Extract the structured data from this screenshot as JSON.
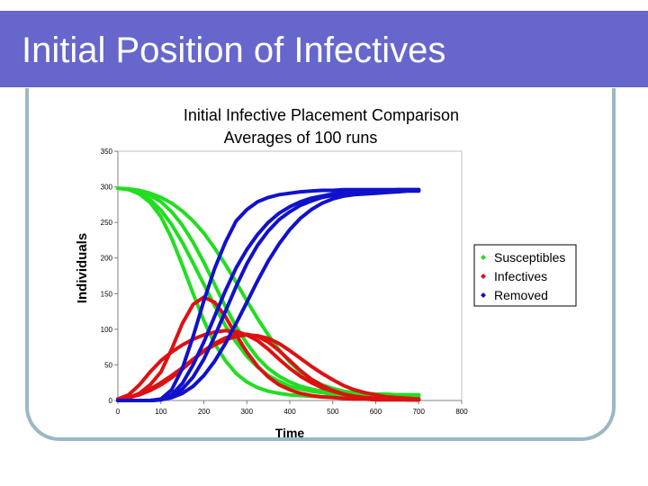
{
  "slide": {
    "title": "Initial Position of Infectives"
  },
  "colors": {
    "header_bg": "#6666cc",
    "frame": "#9ab8c4",
    "susceptibles": "#22dd22",
    "infectives": "#dd1111",
    "removed": "#1111cc"
  },
  "chart_data": {
    "type": "line",
    "title": "Initial Infective Placement Comparison",
    "subtitle": "Averages of 100 runs",
    "xlabel": "Time",
    "ylabel": "Individuals",
    "xlim": [
      0,
      800
    ],
    "ylim": [
      0,
      350
    ],
    "x_ticks": [
      0,
      100,
      200,
      300,
      400,
      500,
      600,
      700,
      800
    ],
    "y_ticks": [
      0,
      50,
      100,
      150,
      200,
      250,
      300,
      350
    ],
    "grid": false,
    "legend_position": "right",
    "legend": [
      "Susceptibles",
      "Infectives",
      "Removed"
    ],
    "x": [
      0,
      25,
      50,
      75,
      100,
      125,
      150,
      175,
      200,
      225,
      250,
      275,
      300,
      325,
      350,
      375,
      400,
      425,
      450,
      475,
      500,
      525,
      550,
      575,
      600,
      625,
      650,
      675,
      700
    ],
    "series": [
      {
        "group": "Susceptibles",
        "run": 1,
        "values": [
          298,
          296,
          290,
          278,
          258,
          228,
          190,
          150,
          112,
          80,
          56,
          38,
          26,
          18,
          13,
          10,
          8,
          7,
          6,
          5,
          5,
          5,
          5,
          5,
          5,
          5,
          5,
          5,
          5
        ]
      },
      {
        "group": "Susceptibles",
        "run": 2,
        "values": [
          298,
          297,
          294,
          288,
          279,
          265,
          246,
          222,
          194,
          163,
          132,
          104,
          80,
          60,
          45,
          34,
          26,
          20,
          16,
          13,
          11,
          10,
          9,
          8,
          8,
          8,
          8,
          8,
          8
        ]
      },
      {
        "group": "Susceptibles",
        "run": 3,
        "values": [
          298,
          296,
          291,
          282,
          267,
          247,
          222,
          193,
          163,
          133,
          105,
          82,
          62,
          47,
          35,
          27,
          20,
          16,
          13,
          11,
          9,
          8,
          7,
          7,
          7,
          7,
          7,
          7,
          7
        ]
      },
      {
        "group": "Susceptibles",
        "run": 4,
        "values": [
          298,
          297,
          295,
          291,
          285,
          277,
          266,
          252,
          235,
          214,
          191,
          166,
          140,
          115,
          92,
          71,
          54,
          40,
          30,
          22,
          17,
          13,
          11,
          10,
          9,
          9,
          8,
          8,
          8
        ]
      },
      {
        "group": "Infectives",
        "run": 1,
        "values": [
          2,
          4,
          10,
          22,
          40,
          72,
          108,
          135,
          145,
          138,
          118,
          92,
          68,
          48,
          33,
          22,
          15,
          10,
          7,
          5,
          4,
          3,
          2,
          2,
          1,
          1,
          1,
          1,
          1
        ]
      },
      {
        "group": "Infectives",
        "run": 2,
        "values": [
          2,
          4,
          8,
          14,
          22,
          32,
          44,
          57,
          70,
          80,
          88,
          92,
          93,
          90,
          82,
          70,
          56,
          42,
          30,
          21,
          14,
          9,
          6,
          4,
          3,
          2,
          2,
          1,
          1
        ]
      },
      {
        "group": "Infectives",
        "run": 3,
        "values": [
          2,
          8,
          22,
          40,
          56,
          68,
          78,
          86,
          92,
          96,
          98,
          97,
          92,
          84,
          72,
          58,
          45,
          34,
          25,
          18,
          13,
          9,
          6,
          4,
          3,
          2,
          2,
          1,
          1
        ]
      },
      {
        "group": "Infectives",
        "run": 4,
        "values": [
          2,
          4,
          9,
          16,
          25,
          35,
          46,
          58,
          69,
          78,
          85,
          90,
          92,
          91,
          87,
          80,
          70,
          59,
          48,
          38,
          29,
          21,
          15,
          11,
          8,
          5,
          4,
          3,
          2
        ]
      },
      {
        "group": "Removed",
        "run": 1,
        "values": [
          0,
          0,
          0,
          0,
          2,
          15,
          45,
          90,
          140,
          185,
          222,
          252,
          268,
          279,
          285,
          289,
          291,
          293,
          294,
          295,
          295,
          296,
          296,
          296,
          296,
          296,
          296,
          296,
          296
        ]
      },
      {
        "group": "Removed",
        "run": 2,
        "values": [
          0,
          0,
          0,
          0,
          1,
          6,
          16,
          33,
          58,
          90,
          125,
          160,
          192,
          218,
          238,
          254,
          265,
          274,
          280,
          285,
          288,
          290,
          292,
          293,
          294,
          295,
          295,
          295,
          295
        ]
      },
      {
        "group": "Removed",
        "run": 3,
        "values": [
          0,
          0,
          0,
          0,
          1,
          8,
          24,
          50,
          82,
          118,
          154,
          186,
          212,
          233,
          250,
          263,
          272,
          279,
          284,
          287,
          290,
          292,
          293,
          294,
          295,
          295,
          296,
          296,
          296
        ]
      },
      {
        "group": "Removed",
        "run": 4,
        "values": [
          0,
          0,
          0,
          0,
          1,
          4,
          10,
          20,
          35,
          55,
          80,
          108,
          138,
          168,
          196,
          220,
          240,
          256,
          268,
          277,
          283,
          287,
          289,
          290,
          291,
          292,
          293,
          294,
          294
        ]
      }
    ]
  }
}
